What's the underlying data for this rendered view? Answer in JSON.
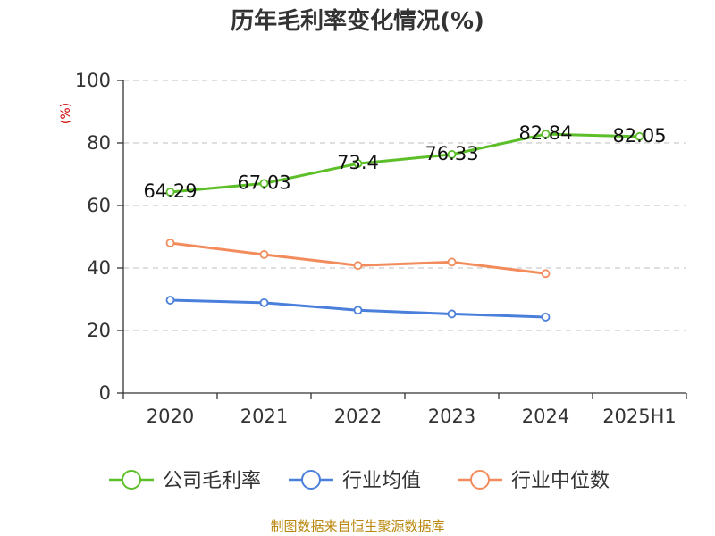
{
  "chart_data": {
    "type": "line",
    "title": "历年毛利率变化情况(%)",
    "ylabel": "(%)",
    "categories": [
      "2020",
      "2021",
      "2022",
      "2023",
      "2024",
      "2025H1"
    ],
    "ylim": [
      0,
      100
    ],
    "yticks": [
      0,
      20,
      40,
      60,
      80,
      100
    ],
    "grid": true,
    "legend_position": "bottom",
    "series": [
      {
        "name": "公司毛利率",
        "color": "#5cbf2a",
        "values": [
          64.29,
          67.03,
          73.4,
          76.33,
          82.84,
          82.05
        ],
        "labels": [
          "64.29",
          "67.03",
          "73.4",
          "76.33",
          "82.84",
          "82.05"
        ],
        "show_labels": true
      },
      {
        "name": "行业均值",
        "color": "#4a7fdb",
        "values": [
          29.7,
          28.9,
          26.5,
          25.3,
          24.3,
          null
        ],
        "show_labels": false
      },
      {
        "name": "行业中位数",
        "color": "#f28c5c",
        "values": [
          48.0,
          44.3,
          40.8,
          41.9,
          38.2,
          null
        ],
        "show_labels": false
      }
    ],
    "source": "制图数据来自恒生聚源数据库"
  }
}
